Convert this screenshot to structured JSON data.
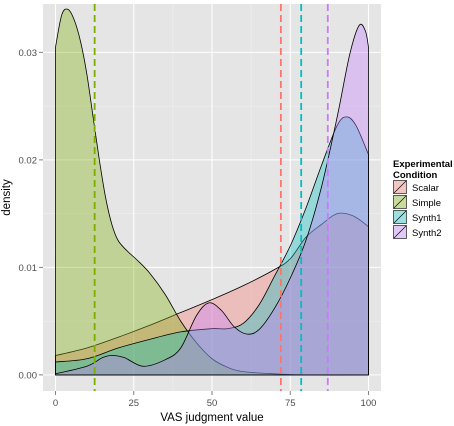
{
  "chart_data": {
    "type": "area",
    "xlabel": "VAS judgment value",
    "ylabel": "density",
    "xlim": [
      -4,
      104
    ],
    "ylim": [
      -0.0015,
      0.0345
    ],
    "x_ticks": [
      0,
      25,
      50,
      75,
      100
    ],
    "x_tick_labels": [
      "0",
      "25",
      "50",
      "75",
      "100"
    ],
    "y_ticks": [
      0.0,
      0.01,
      0.02,
      0.03
    ],
    "y_tick_labels": [
      "0.00",
      "0.01",
      "0.02",
      "0.03"
    ],
    "grid": true,
    "legend_position": "right",
    "legend_title_lines": [
      "Experimental",
      "Condition"
    ],
    "x_grid": [
      0,
      100
    ],
    "series": [
      {
        "name": "Scalar",
        "color": "#f8766d",
        "points": [
          [
            0,
            0.0018
          ],
          [
            10,
            0.0025
          ],
          [
            20,
            0.0035
          ],
          [
            30,
            0.0046
          ],
          [
            40,
            0.0058
          ],
          [
            50,
            0.007
          ],
          [
            60,
            0.0083
          ],
          [
            70,
            0.0098
          ],
          [
            75,
            0.0108
          ],
          [
            80,
            0.0128
          ],
          [
            85,
            0.014
          ],
          [
            90,
            0.015
          ],
          [
            95,
            0.0148
          ],
          [
            100,
            0.0138
          ]
        ],
        "mean": 72
      },
      {
        "name": "Simple",
        "color": "#7cae00",
        "points": [
          [
            0,
            0.0305
          ],
          [
            2,
            0.0335
          ],
          [
            4,
            0.034
          ],
          [
            6,
            0.033
          ],
          [
            8,
            0.031
          ],
          [
            10,
            0.028
          ],
          [
            12,
            0.024
          ],
          [
            14,
            0.02
          ],
          [
            16,
            0.0165
          ],
          [
            18,
            0.014
          ],
          [
            20,
            0.0125
          ],
          [
            23,
            0.0115
          ],
          [
            26,
            0.0107
          ],
          [
            30,
            0.0095
          ],
          [
            35,
            0.0075
          ],
          [
            40,
            0.005
          ],
          [
            45,
            0.003
          ],
          [
            50,
            0.0015
          ],
          [
            55,
            0.0007
          ],
          [
            60,
            0.0003
          ],
          [
            70,
            0.0001
          ],
          [
            80,
            0.0
          ],
          [
            100,
            0.0
          ]
        ],
        "mean": 12.5
      },
      {
        "name": "Synth1",
        "color": "#00bfc4",
        "points": [
          [
            0,
            0.0012
          ],
          [
            10,
            0.0015
          ],
          [
            20,
            0.0025
          ],
          [
            30,
            0.0033
          ],
          [
            40,
            0.004
          ],
          [
            50,
            0.0043
          ],
          [
            55,
            0.0043
          ],
          [
            60,
            0.0048
          ],
          [
            65,
            0.0065
          ],
          [
            70,
            0.0092
          ],
          [
            75,
            0.012
          ],
          [
            80,
            0.0155
          ],
          [
            85,
            0.0195
          ],
          [
            90,
            0.0232
          ],
          [
            93,
            0.024
          ],
          [
            96,
            0.0232
          ],
          [
            100,
            0.0205
          ]
        ],
        "mean": 78.5
      },
      {
        "name": "Synth2",
        "color": "#c77cff",
        "points": [
          [
            0,
            0.0001
          ],
          [
            10,
            0.0008
          ],
          [
            15,
            0.0016
          ],
          [
            18,
            0.0018
          ],
          [
            22,
            0.0016
          ],
          [
            28,
            0.0008
          ],
          [
            35,
            0.0014
          ],
          [
            40,
            0.0025
          ],
          [
            45,
            0.0055
          ],
          [
            49,
            0.0067
          ],
          [
            53,
            0.006
          ],
          [
            57,
            0.0045
          ],
          [
            61,
            0.0038
          ],
          [
            65,
            0.0042
          ],
          [
            70,
            0.0062
          ],
          [
            75,
            0.009
          ],
          [
            80,
            0.0125
          ],
          [
            85,
            0.0175
          ],
          [
            90,
            0.024
          ],
          [
            94,
            0.0298
          ],
          [
            97,
            0.0325
          ],
          [
            99,
            0.032
          ],
          [
            100,
            0.0305
          ]
        ],
        "mean": 87
      }
    ]
  }
}
